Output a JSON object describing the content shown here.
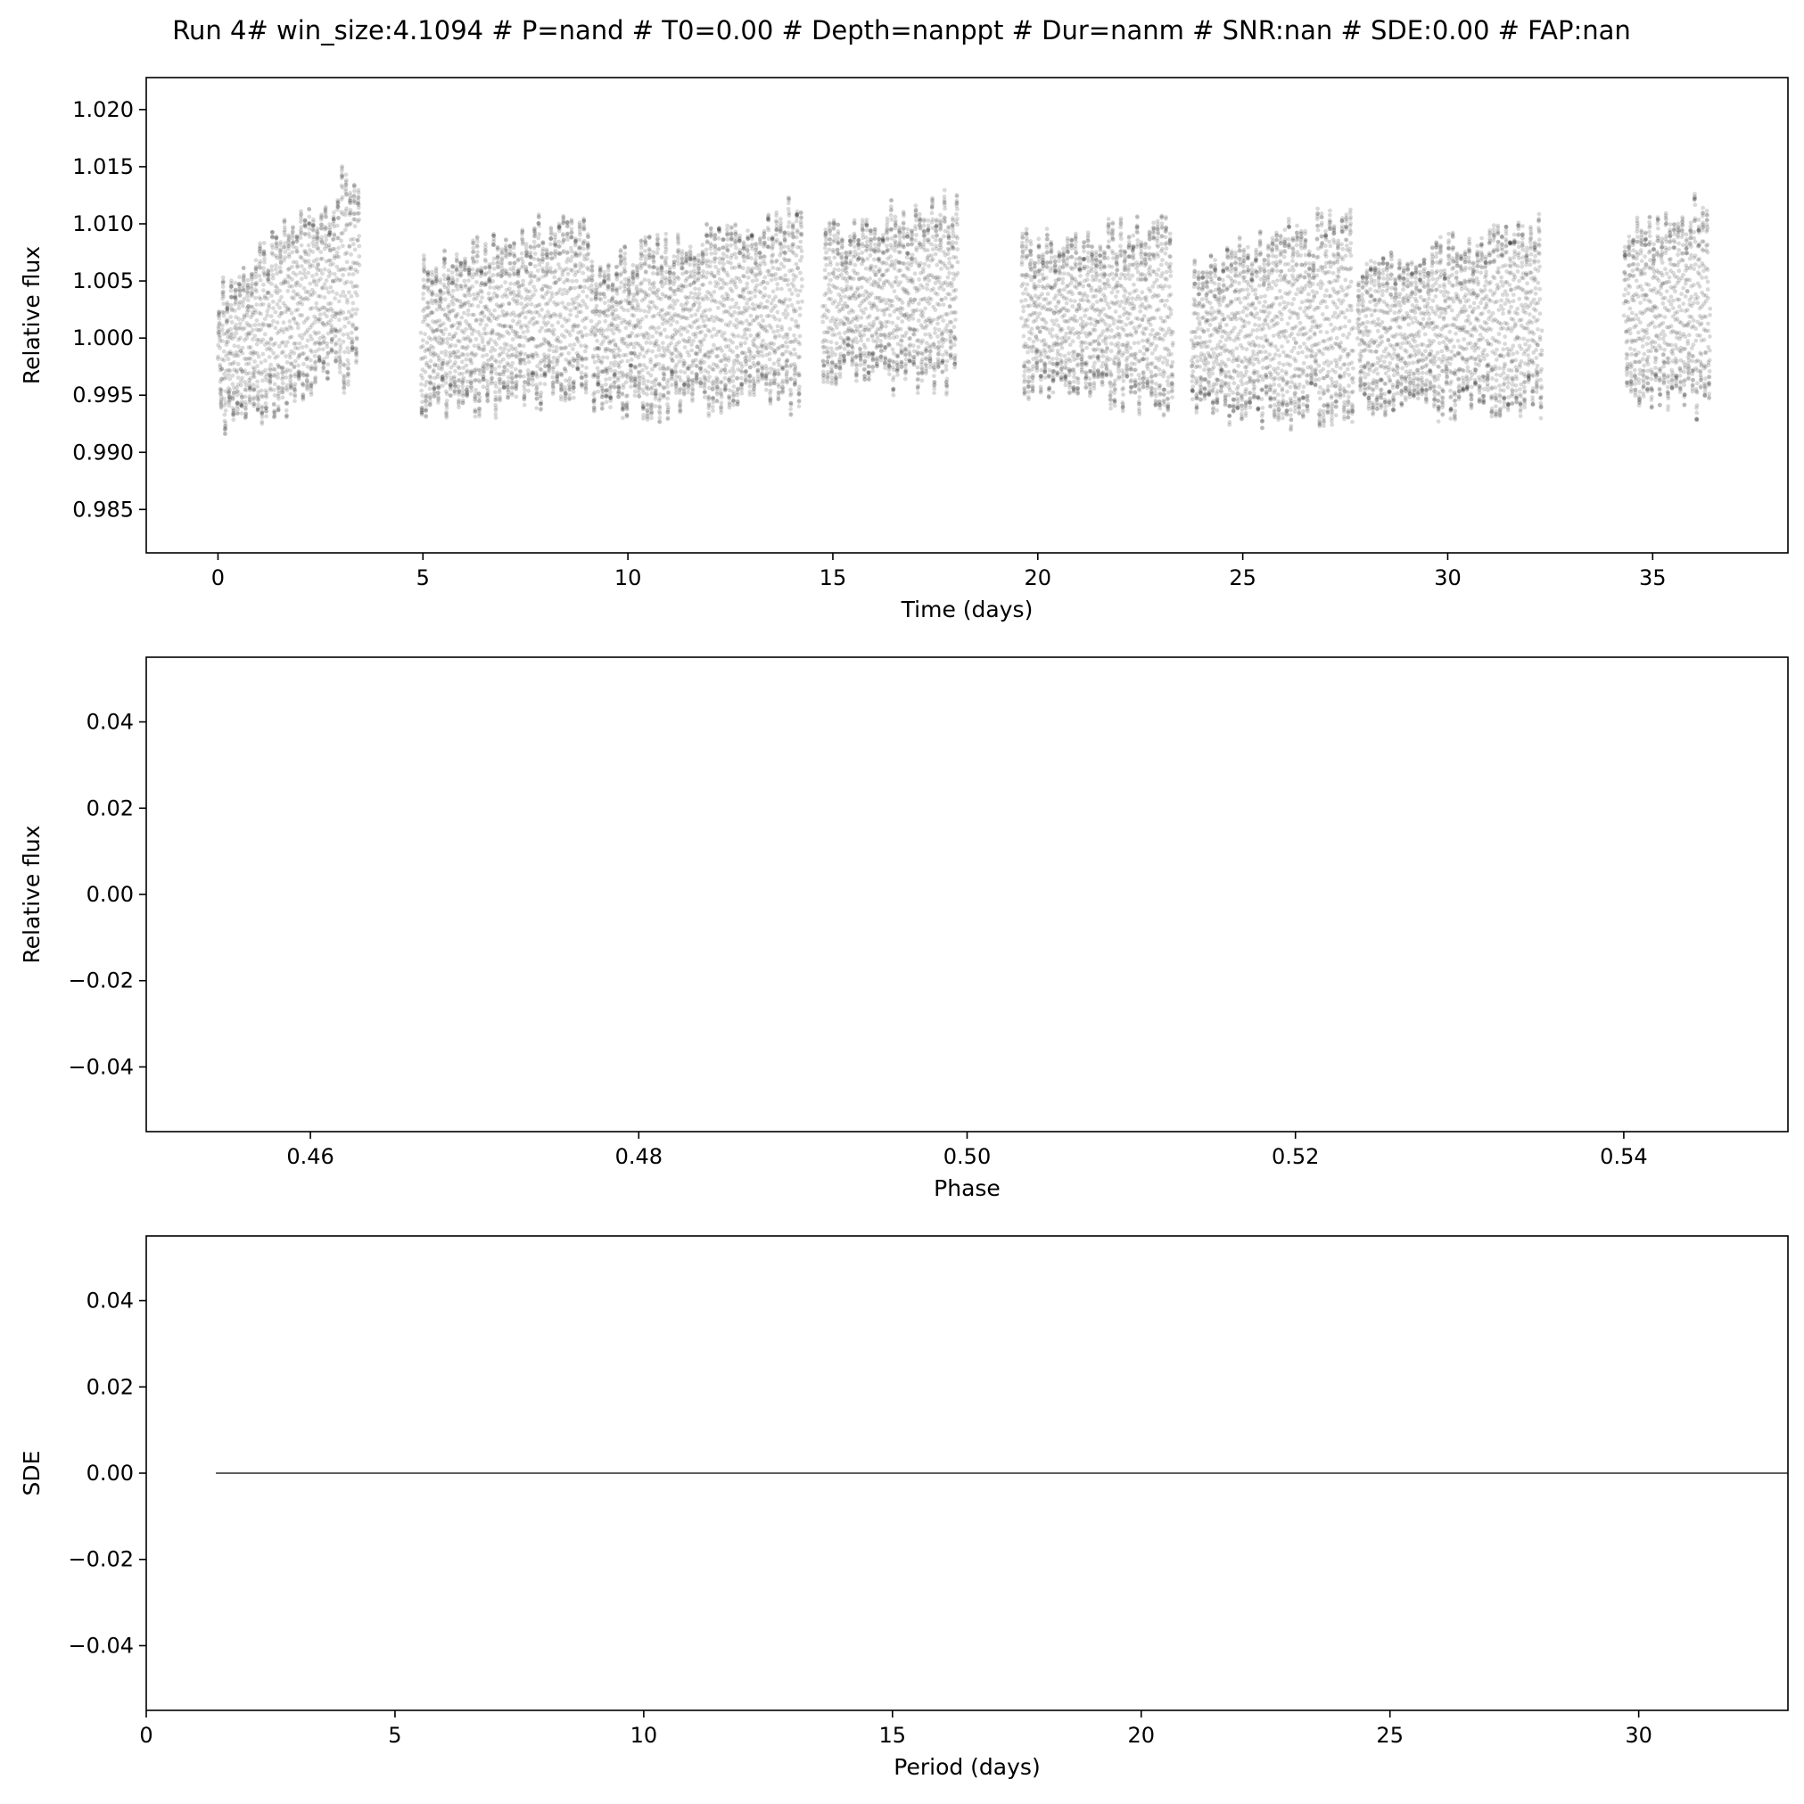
{
  "figure": {
    "title": "Run 4# win_size:4.1094 # P=nand # T0=0.00 # Depth=nanppt # Dur=nanm # SNR:nan # SDE:0.00 # FAP:nan"
  },
  "chart_data": [
    {
      "type": "scatter",
      "xlabel": "Time (days)",
      "ylabel": "Relative flux",
      "xlim": [
        -1.75,
        38.3
      ],
      "ylim": [
        0.9812,
        1.0228
      ],
      "xticks": [
        0,
        5,
        10,
        15,
        20,
        25,
        30,
        35
      ],
      "xtick_labels": [
        "0",
        "5",
        "10",
        "15",
        "20",
        "25",
        "30",
        "35"
      ],
      "yticks": [
        0.985,
        0.99,
        0.995,
        1.0,
        1.005,
        1.01,
        1.015,
        1.02
      ],
      "ytick_labels": [
        "0.985",
        "0.990",
        "0.995",
        "1.000",
        "1.005",
        "1.010",
        "1.015",
        "1.020"
      ],
      "grid": false,
      "series": [
        {
          "color": "#000000",
          "alpha": 0.15,
          "oscillation_period_days": 0.1,
          "segments": [
            {
              "x": [
                0.0,
                3.45
              ],
              "center": [
                0.998,
                1.006
              ],
              "amplitude": [
                0.006,
                0.009
              ]
            },
            {
              "x": [
                4.95,
                9.05
              ],
              "center": [
                1.0,
                1.003
              ],
              "amplitude": [
                0.006,
                0.008
              ]
            },
            {
              "x": [
                9.1,
                14.25
              ],
              "center": [
                1.0,
                1.003
              ],
              "amplitude": [
                0.006,
                0.009
              ]
            },
            {
              "x": [
                14.75,
                18.05
              ],
              "center": [
                1.003,
                1.004
              ],
              "amplitude": [
                0.006,
                0.008
              ]
            },
            {
              "x": [
                19.6,
                23.3
              ],
              "center": [
                1.002,
                1.002
              ],
              "amplitude": [
                0.006,
                0.008
              ]
            },
            {
              "x": [
                23.75,
                27.7
              ],
              "center": [
                1.0,
                1.002
              ],
              "amplitude": [
                0.006,
                0.009
              ]
            },
            {
              "x": [
                27.8,
                32.3
              ],
              "center": [
                1.0,
                1.002
              ],
              "amplitude": [
                0.006,
                0.008
              ]
            },
            {
              "x": [
                34.3,
                36.4
              ],
              "center": [
                1.002,
                1.003
              ],
              "amplitude": [
                0.007,
                0.009
              ]
            }
          ]
        }
      ]
    },
    {
      "type": "scatter",
      "xlabel": "Phase",
      "ylabel": "Relative flux",
      "xlim": [
        0.45,
        0.55
      ],
      "ylim": [
        -0.055,
        0.055
      ],
      "xticks": [
        0.46,
        0.48,
        0.5,
        0.52,
        0.54
      ],
      "xtick_labels": [
        "0.46",
        "0.48",
        "0.50",
        "0.52",
        "0.54"
      ],
      "yticks": [
        -0.04,
        -0.02,
        0.0,
        0.02,
        0.04
      ],
      "ytick_labels": [
        "−0.04",
        "−0.02",
        "0.00",
        "0.02",
        "0.04"
      ],
      "grid": false,
      "series": []
    },
    {
      "type": "line",
      "xlabel": "Period (days)",
      "ylabel": "SDE",
      "xlim": [
        0,
        33
      ],
      "ylim": [
        -0.055,
        0.055
      ],
      "xticks": [
        0,
        5,
        10,
        15,
        20,
        25,
        30
      ],
      "xtick_labels": [
        "0",
        "5",
        "10",
        "15",
        "20",
        "25",
        "30"
      ],
      "yticks": [
        -0.04,
        -0.02,
        0.0,
        0.02,
        0.04
      ],
      "ytick_labels": [
        "−0.04",
        "−0.02",
        "0.00",
        "0.02",
        "0.04"
      ],
      "grid": false,
      "series": [
        {
          "color": "#000000",
          "x": [
            1.4,
            33.0
          ],
          "y": [
            0.0,
            0.0
          ]
        }
      ]
    }
  ]
}
